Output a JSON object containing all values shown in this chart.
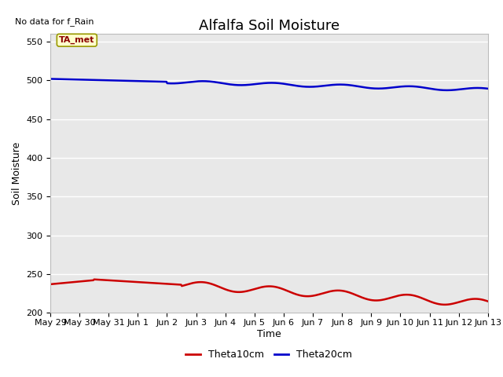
{
  "title": "Alfalfa Soil Moisture",
  "top_left_text": "No data for f_Rain",
  "xlabel": "Time",
  "ylabel": "Soil Moisture",
  "plot_bg_color": "#e8e8e8",
  "ylim": [
    200,
    560
  ],
  "yticks": [
    200,
    250,
    300,
    350,
    400,
    450,
    500,
    550
  ],
  "n_days": 16,
  "xtick_labels": [
    "May 29",
    "May 30",
    "May 31",
    "Jun 1",
    "Jun 2",
    "Jun 3",
    "Jun 4",
    "Jun 5",
    "Jun 6",
    "Jun 7",
    "Jun 8",
    "Jun 9",
    "Jun 10",
    "Jun 11",
    "Jun 12",
    "Jun 13"
  ],
  "theta10_color": "#cc0000",
  "theta20_color": "#0000cc",
  "annotation_text": "TA_met",
  "legend_labels": [
    "Theta10cm",
    "Theta20cm"
  ],
  "title_fontsize": 13,
  "axis_label_fontsize": 9,
  "tick_fontsize": 8,
  "legend_fontsize": 9
}
